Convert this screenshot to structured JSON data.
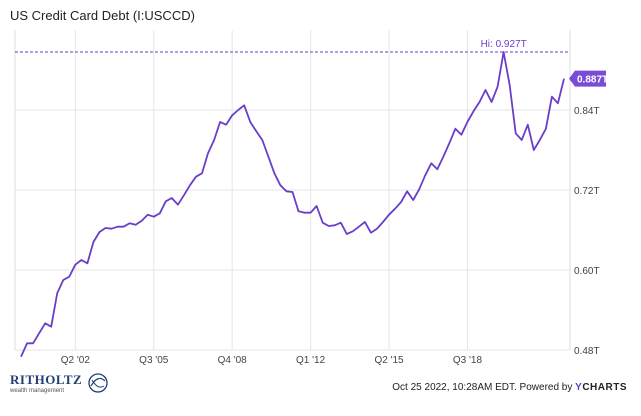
{
  "title": "US Credit Card Debt (I:USCCD)",
  "footer": {
    "timestamp": "Oct 25 2022, 10:28AM EDT. Powered by",
    "brand_y": "Y",
    "brand_rest": "CHARTS"
  },
  "logo": {
    "name": "RITHOLTZ",
    "sub": "wealth management"
  },
  "colors": {
    "line": "#6a3ec8",
    "accent": "#7a4cd6",
    "logo": "#1f3f73"
  },
  "chart_data": {
    "type": "line",
    "title": "US Credit Card Debt (I:USCCD)",
    "xlabel": "",
    "ylabel": "",
    "xlim": [
      1999.75,
      2022.75
    ],
    "ylim": [
      0.48,
      0.96
    ],
    "x_ticks": [
      {
        "value": 2002.25,
        "label": "Q2 '02"
      },
      {
        "value": 2005.5,
        "label": "Q3 '05"
      },
      {
        "value": 2008.75,
        "label": "Q4 '08"
      },
      {
        "value": 2012.0,
        "label": "Q1 '12"
      },
      {
        "value": 2015.25,
        "label": "Q2 '15"
      },
      {
        "value": 2018.5,
        "label": "Q3 '18"
      }
    ],
    "y_ticks": [
      {
        "value": 0.48,
        "label": "0.48T"
      },
      {
        "value": 0.6,
        "label": "0.60T"
      },
      {
        "value": 0.72,
        "label": "0.72T"
      },
      {
        "value": 0.84,
        "label": "0.84T"
      }
    ],
    "grid": true,
    "high": {
      "value": 0.927,
      "label": "Hi: 0.927T"
    },
    "last": {
      "value": 0.887,
      "label": "0.887T"
    },
    "series": [
      {
        "x": [
          2000.0,
          2000.25,
          2000.5,
          2000.75,
          2001.0,
          2001.25,
          2001.5,
          2001.75,
          2002.0,
          2002.25,
          2002.5,
          2002.75,
          2003.0,
          2003.25,
          2003.5,
          2003.75,
          2004.0,
          2004.25,
          2004.5,
          2004.75,
          2005.0,
          2005.25,
          2005.5,
          2005.75,
          2006.0,
          2006.25,
          2006.5,
          2006.75,
          2007.0,
          2007.25,
          2007.5,
          2007.75,
          2008.0,
          2008.25,
          2008.5,
          2008.75,
          2009.0,
          2009.25,
          2009.5,
          2009.75,
          2010.0,
          2010.25,
          2010.5,
          2010.75,
          2011.0,
          2011.25,
          2011.5,
          2011.75,
          2012.0,
          2012.25,
          2012.5,
          2012.75,
          2013.0,
          2013.25,
          2013.5,
          2013.75,
          2014.0,
          2014.25,
          2014.5,
          2014.75,
          2015.0,
          2015.25,
          2015.5,
          2015.75,
          2016.0,
          2016.25,
          2016.5,
          2016.75,
          2017.0,
          2017.25,
          2017.5,
          2017.75,
          2018.0,
          2018.25,
          2018.5,
          2018.75,
          2019.0,
          2019.25,
          2019.5,
          2019.75,
          2020.0,
          2020.25,
          2020.5,
          2020.75,
          2021.0,
          2021.25,
          2021.5,
          2021.75,
          2022.0,
          2022.25,
          2022.5
        ],
        "y": [
          0.47,
          0.49,
          0.49,
          0.505,
          0.52,
          0.515,
          0.565,
          0.585,
          0.59,
          0.608,
          0.615,
          0.61,
          0.642,
          0.657,
          0.663,
          0.662,
          0.665,
          0.665,
          0.67,
          0.668,
          0.674,
          0.683,
          0.68,
          0.685,
          0.703,
          0.708,
          0.698,
          0.712,
          0.727,
          0.74,
          0.745,
          0.775,
          0.795,
          0.822,
          0.818,
          0.832,
          0.84,
          0.847,
          0.822,
          0.808,
          0.795,
          0.77,
          0.745,
          0.727,
          0.718,
          0.717,
          0.688,
          0.686,
          0.686,
          0.696,
          0.671,
          0.666,
          0.667,
          0.671,
          0.654,
          0.658,
          0.665,
          0.672,
          0.656,
          0.662,
          0.672,
          0.683,
          0.692,
          0.702,
          0.718,
          0.705,
          0.721,
          0.742,
          0.76,
          0.751,
          0.77,
          0.79,
          0.812,
          0.803,
          0.822,
          0.838,
          0.852,
          0.87,
          0.852,
          0.875,
          0.927,
          0.877,
          0.805,
          0.795,
          0.818,
          0.78,
          0.795,
          0.812,
          0.86,
          0.85,
          0.887
        ]
      }
    ]
  }
}
